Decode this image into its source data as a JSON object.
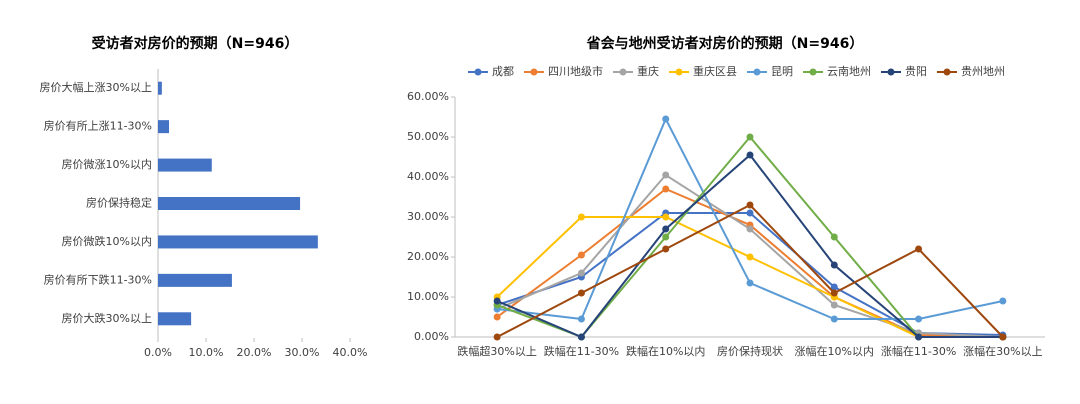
{
  "chart_data": [
    {
      "type": "barh",
      "title": "受访者对房价的预期（N=946）",
      "categories": [
        "房价大幅上涨30%以上",
        "房价有所上涨11-30%",
        "房价微涨10%以内",
        "房价保持稳定",
        "房价微跌10%以内",
        "房价有所下跌11-30%",
        "房价大跌30%以上"
      ],
      "values": [
        0.8,
        2.3,
        11.2,
        29.6,
        33.3,
        15.4,
        6.9
      ],
      "color": "#4472c4",
      "xlim": [
        0,
        40
      ],
      "xticks": [
        {
          "value": 0,
          "label": "0.0%"
        },
        {
          "value": 10,
          "label": "10.0%"
        },
        {
          "value": 20,
          "label": "20.0%"
        },
        {
          "value": 30,
          "label": "30.0%"
        },
        {
          "value": 40,
          "label": "40.0%"
        }
      ],
      "grid": false
    },
    {
      "type": "line",
      "title": "省会与地州受访者对房价的预期（N=946）",
      "categories": [
        "跌幅超30%以上",
        "跌幅在11-30%",
        "跌幅在10%以内",
        "房价保持现状",
        "涨幅在10%以内",
        "涨幅在11-30%",
        "涨幅在30%以上"
      ],
      "series": [
        {
          "name": "成都",
          "color": "#4472c4",
          "values": [
            8,
            15,
            31,
            31,
            12.5,
            1,
            0.5
          ]
        },
        {
          "name": "四川地级市",
          "color": "#ed7d31",
          "values": [
            5,
            20.5,
            37,
            28,
            10,
            0.5,
            0
          ]
        },
        {
          "name": "重庆",
          "color": "#a5a5a5",
          "values": [
            7,
            16,
            40.5,
            27,
            8,
            1,
            0
          ]
        },
        {
          "name": "重庆区县",
          "color": "#ffc000",
          "values": [
            10,
            30,
            30,
            20,
            10,
            0,
            0
          ]
        },
        {
          "name": "昆明",
          "color": "#5b9bd5",
          "values": [
            7,
            4.5,
            54.5,
            13.5,
            4.5,
            4.5,
            9
          ]
        },
        {
          "name": "云南地州",
          "color": "#70ad47",
          "values": [
            8,
            0,
            25,
            50,
            25,
            0,
            0
          ]
        },
        {
          "name": "贵阳",
          "color": "#264478",
          "values": [
            9,
            0,
            27,
            45.5,
            18,
            0,
            0
          ]
        },
        {
          "name": "贵州地州",
          "color": "#9e480e",
          "values": [
            0,
            11,
            22,
            33,
            11,
            22,
            0
          ]
        }
      ],
      "ylim": [
        0,
        60
      ],
      "yticks": [
        {
          "value": 0,
          "label": "0.00%"
        },
        {
          "value": 10,
          "label": "10.00%"
        },
        {
          "value": 20,
          "label": "20.00%"
        },
        {
          "value": 30,
          "label": "30.00%"
        },
        {
          "value": 40,
          "label": "40.00%"
        },
        {
          "value": 50,
          "label": "50.00%"
        },
        {
          "value": 60,
          "label": "60.00%"
        }
      ],
      "grid": false,
      "legend": "top"
    }
  ]
}
